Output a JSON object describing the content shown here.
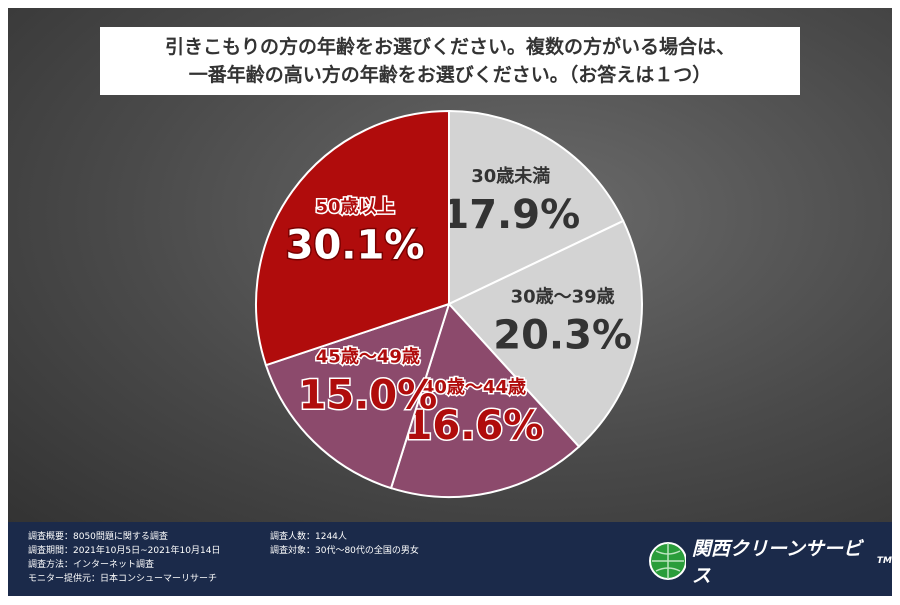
{
  "chart_data": {
    "type": "pie",
    "title_lines": [
      "引きこもりの方の年齢をお選びください。複数の方がいる場合は、",
      "一番年齢の高い方の年齢をお選びください。（お答えは１つ）"
    ],
    "categories": [
      "30歳未満",
      "30歳～39歳",
      "40歳～44歳",
      "45歳～49歳",
      "50歳以上"
    ],
    "values": [
      17.9,
      20.3,
      16.6,
      15.0,
      30.1
    ],
    "value_labels": [
      "17.9%",
      "20.3%",
      "16.6%",
      "15.0%",
      "30.1%"
    ],
    "colors": [
      "#d3d3d3",
      "#d3d3d3",
      "#8c4a6c",
      "#8c4a6c",
      "#b00c0c"
    ]
  },
  "footer": {
    "left": [
      "調査概要：8050問題に関する調査",
      "調査期間：2021年10月5日~2021年10月14日",
      "調査方法：インターネット調査",
      "モニター提供元：日本コンシューマーリサーチ"
    ],
    "right": [
      "調査人数：1244人",
      "調査対象：30代～80代の全国の男女"
    ],
    "logo": "関西クリーンサービス",
    "logo_mark": "TM"
  }
}
